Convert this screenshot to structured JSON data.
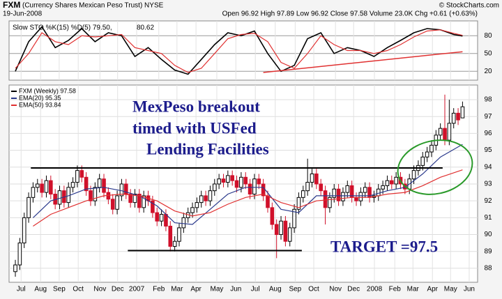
{
  "header": {
    "symbol": "FXM",
    "description": "(Currency Shares Mexican Peso Trust) NYSE",
    "source": "© StockCharts.com",
    "date": "19-Jun-2008",
    "stats": "Open 96.92 High 97.89 Low 96.92 Close 97.58 Volume 23.0K Chg +0.61 (+0.63%)"
  },
  "chart_data": [
    {
      "type": "line",
      "label": "Slow STO %K(15) %D(5) 79.50,",
      "label_value": "80.62",
      "label_value_color": "#e03030",
      "ylim": [
        5,
        105
      ],
      "yticks": [
        20,
        50,
        80
      ],
      "xlim": [
        -1.42,
        104.4
      ],
      "grid": true,
      "series": [
        {
          "color": "#000000",
          "x": [
            0,
            3,
            6,
            9,
            12,
            15,
            18,
            21,
            24,
            27,
            30,
            33,
            36,
            39,
            42,
            45,
            48,
            51,
            54,
            57,
            60,
            63,
            66,
            69,
            72,
            75,
            78,
            81,
            84,
            87,
            90,
            93,
            96,
            99,
            101
          ],
          "values": [
            20,
            70,
            95,
            60,
            72,
            92,
            70,
            85,
            80,
            45,
            60,
            40,
            22,
            15,
            40,
            65,
            85,
            80,
            88,
            50,
            20,
            30,
            75,
            85,
            50,
            60,
            55,
            45,
            60,
            72,
            85,
            92,
            90,
            82,
            79.5
          ]
        },
        {
          "color": "#e03030",
          "x": [
            0,
            3,
            6,
            9,
            12,
            15,
            18,
            21,
            24,
            27,
            30,
            33,
            36,
            39,
            42,
            45,
            48,
            51,
            54,
            57,
            60,
            63,
            66,
            69,
            72,
            75,
            78,
            81,
            84,
            87,
            90,
            93,
            96,
            99,
            101
          ],
          "values": [
            25,
            50,
            85,
            70,
            65,
            80,
            78,
            80,
            82,
            60,
            55,
            50,
            30,
            18,
            25,
            50,
            75,
            82,
            84,
            70,
            35,
            25,
            50,
            80,
            65,
            55,
            55,
            50,
            55,
            65,
            78,
            88,
            90,
            84,
            80.62
          ]
        }
      ],
      "trend_line": {
        "color": "#e03030",
        "x": [
          56,
          101
        ],
        "values": [
          18,
          53
        ]
      }
    },
    {
      "type": "candlestick",
      "ylim": [
        87.17,
        98.87
      ],
      "yticks": [
        88,
        89,
        90,
        91,
        92,
        93,
        94,
        95,
        96,
        97,
        98
      ],
      "xlim": [
        -1.42,
        104.4
      ],
      "grid": true,
      "xticks": [
        {
          "value": 1.3,
          "label": "Jul"
        },
        {
          "value": 5.7,
          "label": "Aug"
        },
        {
          "value": 9.9,
          "label": "Sep"
        },
        {
          "value": 14.2,
          "label": "Oct"
        },
        {
          "value": 19.1,
          "label": "Nov"
        },
        {
          "value": 23.1,
          "label": "Dec"
        },
        {
          "value": 27.4,
          "label": "2007"
        },
        {
          "value": 32.4,
          "label": "Feb"
        },
        {
          "value": 36.5,
          "label": "Mar"
        },
        {
          "value": 40.8,
          "label": "Apr"
        },
        {
          "value": 45.5,
          "label": "May"
        },
        {
          "value": 49.8,
          "label": "Jun"
        },
        {
          "value": 54.2,
          "label": "Jul"
        },
        {
          "value": 58.7,
          "label": "Aug"
        },
        {
          "value": 63.2,
          "label": "Sep"
        },
        {
          "value": 67.4,
          "label": "Oct"
        },
        {
          "value": 72.3,
          "label": "Nov"
        },
        {
          "value": 76.4,
          "label": "Dec"
        },
        {
          "value": 81.1,
          "label": "2008"
        },
        {
          "value": 85.7,
          "label": "Feb"
        },
        {
          "value": 89.8,
          "label": "Mar"
        },
        {
          "value": 94.2,
          "label": "Apr"
        },
        {
          "value": 98.3,
          "label": "May"
        },
        {
          "value": 102.5,
          "label": "Jun"
        }
      ],
      "candles": {
        "name": "FXM (Weekly) 97.58",
        "up_color": "#ffffff",
        "down_color": "#d0102a",
        "edge_color": "#000000",
        "open": [
          87.8,
          88.2,
          89.5,
          91.0,
          92.2,
          92.8,
          93.0,
          92.5,
          93.2,
          92.4,
          91.8,
          92.6,
          91.9,
          92.8,
          93.1,
          93.8,
          93.4,
          92.6,
          92.0,
          92.8,
          93.3,
          92.5,
          92.1,
          91.5,
          92.3,
          93.0,
          92.4,
          91.9,
          92.4,
          91.6,
          92.3,
          92.0,
          91.3,
          90.8,
          91.2,
          90.5,
          89.3,
          89.6,
          90.4,
          91.0,
          91.3,
          91.6,
          91.9,
          92.3,
          92.0,
          92.6,
          93.0,
          93.3,
          93.1,
          93.5,
          93.2,
          92.8,
          93.4,
          93.0,
          92.4,
          93.3,
          93.0,
          92.3,
          91.6,
          90.6,
          90.0,
          90.8,
          89.6,
          90.4,
          91.5,
          92.2,
          92.6,
          93.1,
          93.6,
          93.0,
          92.6,
          91.6,
          92.2,
          92.7,
          92.0,
          92.5,
          92.9,
          92.2,
          92.0,
          92.5,
          92.8,
          92.2,
          92.3,
          92.7,
          92.9,
          93.2,
          93.0,
          93.4,
          93.0,
          92.7,
          93.3,
          93.8,
          94.1,
          94.6,
          94.9,
          95.3,
          95.9,
          96.3,
          95.6,
          96.6,
          97.2,
          96.92
        ],
        "high": [
          88.5,
          89.8,
          91.3,
          92.5,
          93.1,
          93.3,
          93.3,
          93.5,
          93.5,
          92.7,
          92.9,
          92.9,
          93.1,
          93.4,
          94.1,
          94.1,
          93.7,
          92.9,
          93.1,
          93.6,
          93.6,
          92.8,
          92.4,
          92.6,
          93.3,
          93.3,
          92.7,
          92.7,
          92.7,
          92.6,
          92.6,
          92.3,
          91.6,
          91.5,
          91.5,
          90.8,
          89.9,
          90.7,
          91.3,
          91.6,
          91.9,
          92.2,
          92.6,
          92.6,
          92.9,
          93.3,
          93.6,
          93.6,
          93.8,
          93.8,
          93.5,
          93.7,
          93.7,
          93.3,
          93.6,
          93.6,
          93.3,
          92.6,
          91.9,
          90.9,
          91.1,
          91.1,
          90.7,
          91.8,
          92.5,
          92.9,
          94.5,
          93.9,
          93.9,
          93.3,
          92.9,
          92.5,
          93.0,
          93.0,
          92.8,
          93.2,
          93.2,
          92.5,
          92.8,
          93.1,
          93.1,
          92.6,
          93.0,
          93.2,
          93.5,
          93.5,
          93.7,
          93.7,
          93.3,
          93.6,
          94.1,
          94.4,
          94.9,
          95.2,
          95.6,
          96.2,
          96.6,
          98.3,
          98.0,
          97.5,
          97.5,
          97.89
        ],
        "low": [
          87.5,
          87.9,
          89.2,
          90.7,
          91.9,
          92.5,
          92.2,
          92.2,
          92.1,
          91.5,
          91.5,
          91.6,
          91.6,
          92.5,
          92.8,
          93.1,
          92.3,
          91.7,
          91.7,
          92.5,
          92.2,
          91.8,
          91.2,
          91.2,
          92.0,
          92.1,
          91.6,
          91.6,
          91.3,
          91.3,
          91.7,
          91.0,
          90.5,
          90.5,
          90.2,
          89.0,
          89.0,
          89.3,
          90.1,
          90.7,
          91.0,
          91.3,
          91.6,
          91.7,
          91.7,
          92.3,
          92.7,
          92.8,
          92.8,
          92.9,
          92.5,
          92.5,
          92.7,
          92.1,
          92.1,
          92.7,
          92.0,
          91.3,
          90.3,
          88.6,
          89.7,
          89.3,
          89.3,
          90.1,
          91.2,
          91.9,
          92.3,
          92.8,
          92.7,
          92.3,
          90.6,
          91.3,
          91.9,
          91.7,
          91.7,
          92.2,
          91.9,
          91.7,
          91.7,
          92.2,
          91.9,
          91.9,
          92.0,
          92.4,
          92.6,
          92.7,
          92.7,
          92.7,
          92.4,
          92.4,
          93.0,
          93.5,
          93.8,
          94.3,
          94.6,
          95.0,
          95.6,
          95.3,
          95.3,
          96.3,
          96.5,
          96.92
        ],
        "close": [
          88.2,
          89.5,
          91.0,
          92.2,
          92.8,
          93.0,
          92.5,
          93.2,
          92.4,
          91.8,
          92.6,
          91.9,
          92.8,
          93.1,
          93.8,
          93.4,
          92.6,
          92.0,
          92.8,
          93.3,
          92.5,
          92.1,
          91.5,
          92.3,
          93.0,
          92.4,
          91.9,
          92.4,
          91.6,
          92.3,
          92.0,
          91.3,
          90.8,
          91.2,
          90.5,
          89.3,
          89.6,
          90.4,
          91.0,
          91.3,
          91.6,
          91.9,
          92.3,
          92.0,
          92.6,
          93.0,
          93.3,
          93.1,
          93.5,
          93.2,
          92.8,
          93.4,
          93.0,
          92.4,
          93.3,
          93.0,
          92.3,
          91.6,
          90.6,
          90.0,
          90.8,
          89.6,
          90.4,
          91.5,
          92.2,
          92.6,
          93.1,
          93.6,
          93.0,
          92.6,
          91.6,
          92.2,
          92.7,
          92.0,
          92.5,
          92.9,
          92.2,
          92.0,
          92.5,
          92.8,
          92.2,
          92.3,
          92.7,
          92.9,
          93.2,
          93.0,
          93.4,
          93.0,
          92.7,
          93.3,
          93.8,
          94.1,
          94.6,
          94.9,
          95.3,
          95.9,
          96.3,
          95.6,
          96.6,
          97.2,
          96.8,
          97.58
        ]
      },
      "series": [
        {
          "name": "EMA(20) 95.35",
          "color": "#2b3a8c",
          "x": [
            4,
            8,
            12,
            16,
            20,
            24,
            28,
            32,
            36,
            40,
            44,
            48,
            52,
            56,
            60,
            64,
            68,
            72,
            76,
            80,
            84,
            88,
            92,
            96,
            101
          ],
          "values": [
            91.0,
            92.0,
            92.3,
            92.7,
            92.8,
            92.6,
            92.3,
            91.7,
            90.7,
            90.6,
            91.5,
            92.4,
            92.8,
            92.8,
            91.5,
            91.3,
            92.3,
            92.3,
            92.3,
            92.3,
            92.6,
            92.8,
            93.6,
            94.6,
            95.35
          ]
        },
        {
          "name": "EMA(50) 93.84",
          "color": "#e03030",
          "x": [
            4,
            8,
            12,
            16,
            20,
            24,
            28,
            32,
            36,
            40,
            44,
            48,
            52,
            56,
            60,
            64,
            68,
            72,
            76,
            80,
            84,
            88,
            92,
            96,
            101
          ],
          "values": [
            90.5,
            91.2,
            91.6,
            92.0,
            92.3,
            92.4,
            92.3,
            92.0,
            91.4,
            91.1,
            91.3,
            91.8,
            92.2,
            92.4,
            91.9,
            91.6,
            92.0,
            92.1,
            92.2,
            92.2,
            92.4,
            92.5,
            92.9,
            93.4,
            93.84
          ]
        }
      ],
      "hlines": [
        {
          "value": 93.95,
          "x": [
            3.5,
            96.5
          ]
        },
        {
          "value": 89.05,
          "x": [
            25.4,
            64.7
          ]
        }
      ],
      "annotations": [
        "MexPeso breakout",
        "timed with USFed",
        "Lending Facilities",
        "TARGET =97.5"
      ]
    }
  ]
}
